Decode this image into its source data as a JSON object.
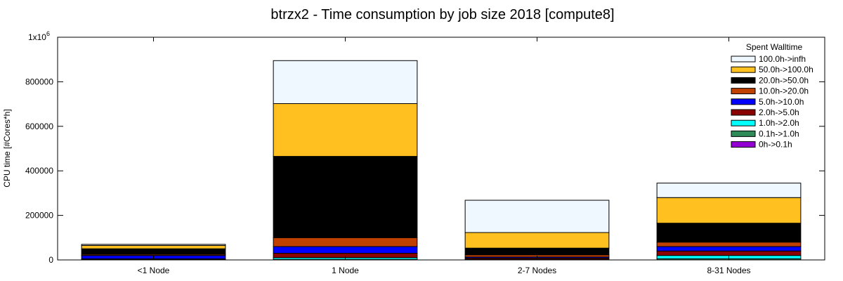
{
  "chart_data": {
    "type": "bar",
    "title": "btrzx2 - Time consumption by job size 2018 [compute8]",
    "xlabel": "",
    "ylabel": "CPU time [#Cores*h]",
    "ylim": [
      0,
      1000000
    ],
    "yticks": [
      0,
      200000,
      400000,
      600000,
      800000,
      1000000
    ],
    "ytick_labels": [
      "0",
      "200000",
      "400000",
      "600000",
      "800000",
      "1x10"
    ],
    "ytick_top_exponent": "6",
    "categories": [
      "<1 Node",
      "1 Node",
      "2-7 Nodes",
      "8-31 Nodes"
    ],
    "stacked": true,
    "legend_title": "Spent Walltime",
    "legend_position": "top-right",
    "grid": false,
    "series": [
      {
        "name": "0h->0.1h",
        "color": "#9400d3",
        "values": [
          0,
          0,
          0,
          0
        ]
      },
      {
        "name": "0.1h->1.0h",
        "color": "#2e8b57",
        "values": [
          1000,
          2000,
          1000,
          5000
        ]
      },
      {
        "name": "1.0h->2.0h",
        "color": "#00ffff",
        "values": [
          1000,
          8000,
          2000,
          15000
        ]
      },
      {
        "name": "2.0h->5.0h",
        "color": "#8b0000",
        "values": [
          3000,
          20000,
          5000,
          20000
        ]
      },
      {
        "name": "5.0h->10.0h",
        "color": "#0000ff",
        "values": [
          15000,
          30000,
          5000,
          20000
        ]
      },
      {
        "name": "10.0h->20.0h",
        "color": "#c04000",
        "values": [
          5000,
          40000,
          10000,
          20000
        ]
      },
      {
        "name": "20.0h->50.0h",
        "color": "#000000",
        "values": [
          25000,
          365000,
          30000,
          85000
        ]
      },
      {
        "name": "50.0h->100.0h",
        "color": "#ffc020",
        "values": [
          15000,
          237000,
          70000,
          115000
        ]
      },
      {
        "name": "100.0h->infh",
        "color": "#f0f8ff",
        "values": [
          5000,
          193000,
          145000,
          65000
        ]
      }
    ]
  }
}
